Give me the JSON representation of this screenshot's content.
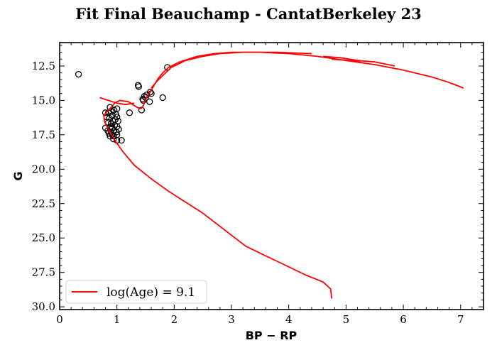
{
  "chart_data": {
    "type": "scatter",
    "title": "Fit Final Beauchamp - CantatBerkeley 23",
    "xlabel": "BP − RP",
    "ylabel": "G",
    "xlim": [
      0,
      7.4
    ],
    "ylim": [
      30.2,
      10.8
    ],
    "y_inverted": true,
    "grid": false,
    "legend_position": "lower-left",
    "x_ticks": [
      0,
      1,
      2,
      3,
      4,
      5,
      6,
      7
    ],
    "x_tick_labels": [
      "0",
      "1",
      "2",
      "3",
      "4",
      "5",
      "6",
      "7"
    ],
    "y_ticks": [
      12.5,
      15.0,
      17.5,
      20.0,
      22.5,
      25.0,
      27.5,
      30.0
    ],
    "y_tick_labels": [
      "12.5",
      "15.0",
      "17.5",
      "20.0",
      "22.5",
      "25.0",
      "27.5",
      "30.0"
    ],
    "series": [
      {
        "name": "",
        "kind": "scatter",
        "marker": "open-circle",
        "color": "#000000",
        "points": [
          [
            0.33,
            13.1
          ],
          [
            1.37,
            13.9
          ],
          [
            1.38,
            14.0
          ],
          [
            1.88,
            12.6
          ],
          [
            1.8,
            14.8
          ],
          [
            1.45,
            14.9
          ],
          [
            1.48,
            14.7
          ],
          [
            1.52,
            14.6
          ],
          [
            1.58,
            14.4
          ],
          [
            1.6,
            14.5
          ],
          [
            1.57,
            15.1
          ],
          [
            1.43,
            15.7
          ],
          [
            1.22,
            15.9
          ],
          [
            1.46,
            15.0
          ],
          [
            1.5,
            14.8
          ],
          [
            0.88,
            15.5
          ],
          [
            1.0,
            15.6
          ],
          [
            0.9,
            15.8
          ],
          [
            0.95,
            15.7
          ],
          [
            0.85,
            15.9
          ],
          [
            0.8,
            15.9
          ],
          [
            0.98,
            16.0
          ],
          [
            0.92,
            16.1
          ],
          [
            0.87,
            16.3
          ],
          [
            1.0,
            16.2
          ],
          [
            0.93,
            16.5
          ],
          [
            1.02,
            16.5
          ],
          [
            0.85,
            16.6
          ],
          [
            0.9,
            16.7
          ],
          [
            0.96,
            16.8
          ],
          [
            1.0,
            16.9
          ],
          [
            0.88,
            17.0
          ],
          [
            0.92,
            17.0
          ],
          [
            0.8,
            17.0
          ],
          [
            1.03,
            17.1
          ],
          [
            0.84,
            17.2
          ],
          [
            0.95,
            17.2
          ],
          [
            0.9,
            17.3
          ],
          [
            0.99,
            17.3
          ],
          [
            0.86,
            17.4
          ],
          [
            0.92,
            17.5
          ],
          [
            1.0,
            17.5
          ],
          [
            0.88,
            17.6
          ],
          [
            0.94,
            17.8
          ],
          [
            1.0,
            17.9
          ],
          [
            1.08,
            17.9
          ],
          [
            0.82,
            16.2
          ],
          [
            0.97,
            16.4
          ],
          [
            0.89,
            16.9
          ],
          [
            0.95,
            17.6
          ]
        ]
      },
      {
        "name": "log(Age) = 9.1",
        "kind": "line",
        "color": "#ff0000",
        "points": [
          [
            4.75,
            29.4
          ],
          [
            4.73,
            28.7
          ],
          [
            4.6,
            28.2
          ],
          [
            4.3,
            27.7
          ],
          [
            3.9,
            26.9
          ],
          [
            3.6,
            26.3
          ],
          [
            3.25,
            25.6
          ],
          [
            3.0,
            24.8
          ],
          [
            2.75,
            24.0
          ],
          [
            2.5,
            23.2
          ],
          [
            2.2,
            22.4
          ],
          [
            1.9,
            21.6
          ],
          [
            1.6,
            20.7
          ],
          [
            1.3,
            19.7
          ],
          [
            1.1,
            18.7
          ],
          [
            0.95,
            17.8
          ],
          [
            0.85,
            17.1
          ],
          [
            0.78,
            16.5
          ],
          [
            0.77,
            16.1
          ],
          [
            0.83,
            15.8
          ],
          [
            0.9,
            15.5
          ],
          [
            0.96,
            15.2
          ],
          [
            1.05,
            15.0
          ],
          [
            1.2,
            15.1
          ],
          [
            1.35,
            15.5
          ],
          [
            1.42,
            15.6
          ],
          [
            1.46,
            15.4
          ],
          [
            1.5,
            14.9
          ],
          [
            1.58,
            14.4
          ],
          [
            1.65,
            13.9
          ],
          [
            1.72,
            13.4
          ],
          [
            1.8,
            13.0
          ],
          [
            1.9,
            12.6
          ],
          [
            2.1,
            12.2
          ],
          [
            2.4,
            11.8
          ],
          [
            2.7,
            11.6
          ],
          [
            3.0,
            11.5
          ],
          [
            3.5,
            11.5
          ],
          [
            4.0,
            11.6
          ],
          [
            4.5,
            11.8
          ],
          [
            5.0,
            12.1
          ],
          [
            5.5,
            12.4
          ],
          [
            6.0,
            12.8
          ],
          [
            6.5,
            13.3
          ],
          [
            6.8,
            13.7
          ],
          [
            7.05,
            14.1
          ]
        ]
      },
      {
        "name": "",
        "kind": "line",
        "color": "#ff0000",
        "points": [
          [
            0.7,
            14.8
          ],
          [
            0.85,
            15.0
          ],
          [
            1.0,
            15.2
          ],
          [
            1.15,
            15.3
          ],
          [
            1.3,
            15.2
          ]
        ]
      },
      {
        "name": "",
        "kind": "line",
        "color": "#ff0000",
        "points": [
          [
            4.6,
            11.8
          ],
          [
            4.9,
            11.9
          ],
          [
            5.2,
            12.1
          ],
          [
            5.5,
            12.2
          ],
          [
            5.85,
            12.5
          ]
        ]
      },
      {
        "name": "",
        "kind": "line",
        "color": "#ff0000",
        "points": [
          [
            4.75,
            12.0
          ],
          [
            5.05,
            12.1
          ],
          [
            5.25,
            12.2
          ]
        ]
      },
      {
        "name": "",
        "kind": "line",
        "color": "#ff0000",
        "points": [
          [
            1.6,
            14.1
          ],
          [
            1.7,
            13.6
          ],
          [
            1.8,
            13.2
          ],
          [
            1.95,
            12.6
          ],
          [
            2.2,
            12.1
          ],
          [
            2.5,
            11.8
          ],
          [
            2.8,
            11.6
          ],
          [
            3.2,
            11.5
          ],
          [
            3.8,
            11.5
          ],
          [
            4.4,
            11.6
          ]
        ]
      }
    ]
  }
}
